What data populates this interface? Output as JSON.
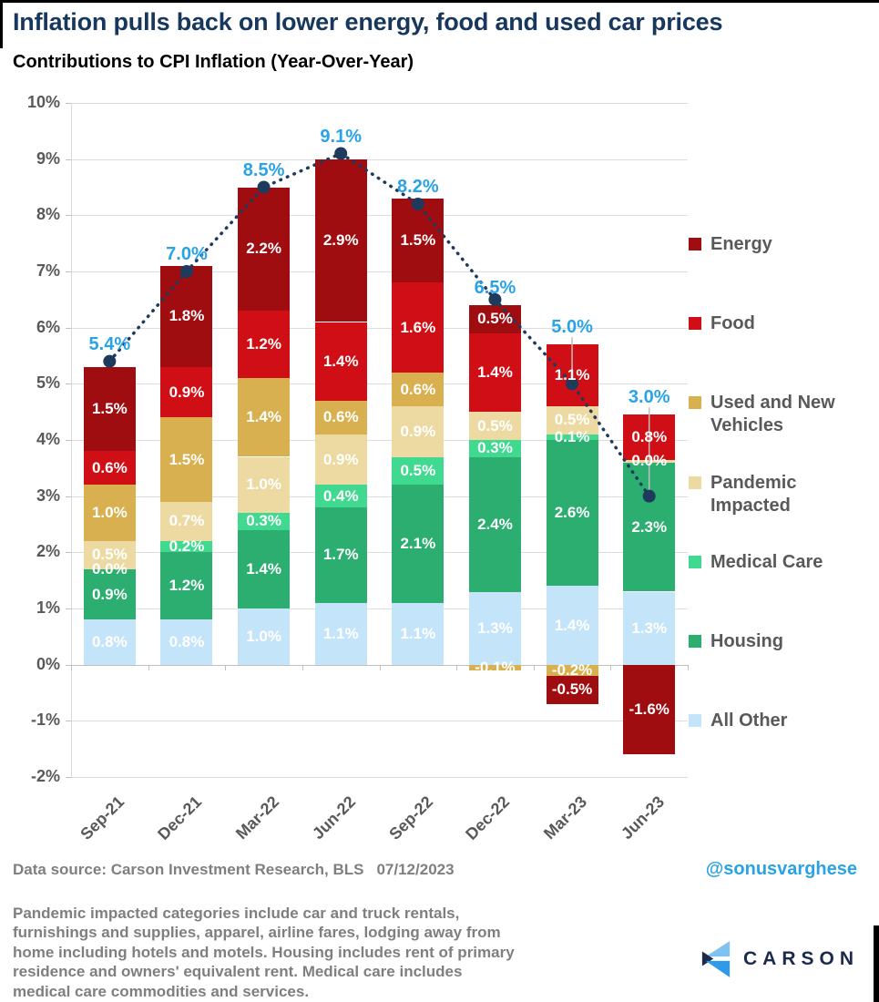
{
  "header": {
    "title": "Inflation pulls back on lower energy, food and used car prices",
    "subtitle": "Contributions to CPI Inflation (Year-Over-Year)",
    "title_color": "#17375D"
  },
  "chart_data": {
    "type": "bar",
    "stacked": true,
    "title": "Contributions to CPI Inflation (Year-Over-Year)",
    "categories": [
      "Sep-21",
      "Dec-21",
      "Mar-22",
      "Jun-22",
      "Sep-22",
      "Dec-22",
      "Mar-23",
      "Jun-23"
    ],
    "unit": "%",
    "ylim": [
      -2,
      10
    ],
    "yticks": [
      "10%",
      "9%",
      "8%",
      "7%",
      "6%",
      "5%",
      "4%",
      "3%",
      "2%",
      "1%",
      "0%",
      "-1%",
      "-2%"
    ],
    "grid": true,
    "legend_position": "right",
    "axis_text_color": "#595959",
    "series": [
      {
        "name": "Energy",
        "color": "#A00D11",
        "values": [
          1.5,
          1.8,
          2.2,
          2.9,
          1.5,
          0.5,
          -0.5,
          -1.6
        ],
        "labels": [
          "1.5%",
          "1.8%",
          "2.2%",
          "2.9%",
          "1.5%",
          "0.5%",
          "-0.5%",
          "-1.6%"
        ]
      },
      {
        "name": "Food",
        "color": "#D00E15",
        "values": [
          0.6,
          0.9,
          1.2,
          1.4,
          1.6,
          1.4,
          1.1,
          0.8
        ],
        "labels": [
          "0.6%",
          "0.9%",
          "1.2%",
          "1.4%",
          "1.6%",
          "1.4%",
          "1.1%",
          "0.8%"
        ]
      },
      {
        "name": "Used and New Vehicles",
        "color": "#D8B04F",
        "values": [
          1.0,
          1.5,
          1.4,
          0.6,
          0.6,
          -0.1,
          -0.2,
          0
        ],
        "labels": [
          "1.0%",
          "1.5%",
          "1.4%",
          "0.6%",
          "0.6%",
          "-0.1%",
          "-0.2%",
          null
        ]
      },
      {
        "name": "Pandemic Impacted",
        "color": "#EDDAA2",
        "values": [
          0.5,
          0.7,
          1.0,
          0.9,
          0.9,
          0.5,
          0.5,
          0.05
        ],
        "labels": [
          "0.5%",
          "0.7%",
          "1.0%",
          "0.9%",
          "0.9%",
          "0.5%",
          "0.5%",
          "0.0%"
        ]
      },
      {
        "name": "Medical Care",
        "color": "#41D98F",
        "values": [
          0,
          0.2,
          0.3,
          0.4,
          0.5,
          0.3,
          0.1,
          0
        ],
        "labels": [
          "0.0%",
          "0.2%",
          "0.3%",
          "0.4%",
          "0.5%",
          "0.3%",
          "0.1%",
          null
        ]
      },
      {
        "name": "Housing",
        "color": "#2BAE70",
        "values": [
          0.9,
          1.2,
          1.4,
          1.7,
          2.1,
          2.4,
          2.6,
          2.3
        ],
        "labels": [
          "0.9%",
          "1.2%",
          "1.4%",
          "1.7%",
          "2.1%",
          "2.4%",
          "2.6%",
          "2.3%"
        ]
      },
      {
        "name": "All Other",
        "color": "#C4E4F9",
        "values": [
          0.8,
          0.8,
          1.0,
          1.1,
          1.1,
          1.3,
          1.4,
          1.3
        ],
        "labels": [
          "0.8%",
          "0.8%",
          "1.0%",
          "1.1%",
          "1.1%",
          "1.3%",
          "1.4%",
          "1.3%"
        ]
      }
    ],
    "line": {
      "name": "Total CPI Inflation (YoY)",
      "color": "#1E3A5C",
      "label_color": "#2AA3E6",
      "leader_color": "#BFBFBF",
      "values": [
        5.4,
        7.0,
        8.5,
        9.1,
        8.2,
        6.5,
        5.0,
        3.0
      ],
      "labels": [
        "5.4%",
        "7.0%",
        "8.5%",
        "9.1%",
        "8.2%",
        "6.5%",
        "5.0%",
        "3.0%"
      ],
      "leader": [
        false,
        false,
        false,
        false,
        false,
        true,
        true,
        true
      ]
    }
  },
  "footer": {
    "source": "Data source: Carson Investment Research, BLS",
    "date": "07/12/2023",
    "note": "Pandemic impacted categories include car and truck rentals, furnishings and supplies, apparel, airline fares, lodging away from home including hotels and motels. Housing includes rent of primary residence and owners' equivalent rent. Medical care includes medical care commodities and services.",
    "handle": "@sonusvarghese",
    "handle_color": "#2AA3E6",
    "brand": "CARSON"
  }
}
